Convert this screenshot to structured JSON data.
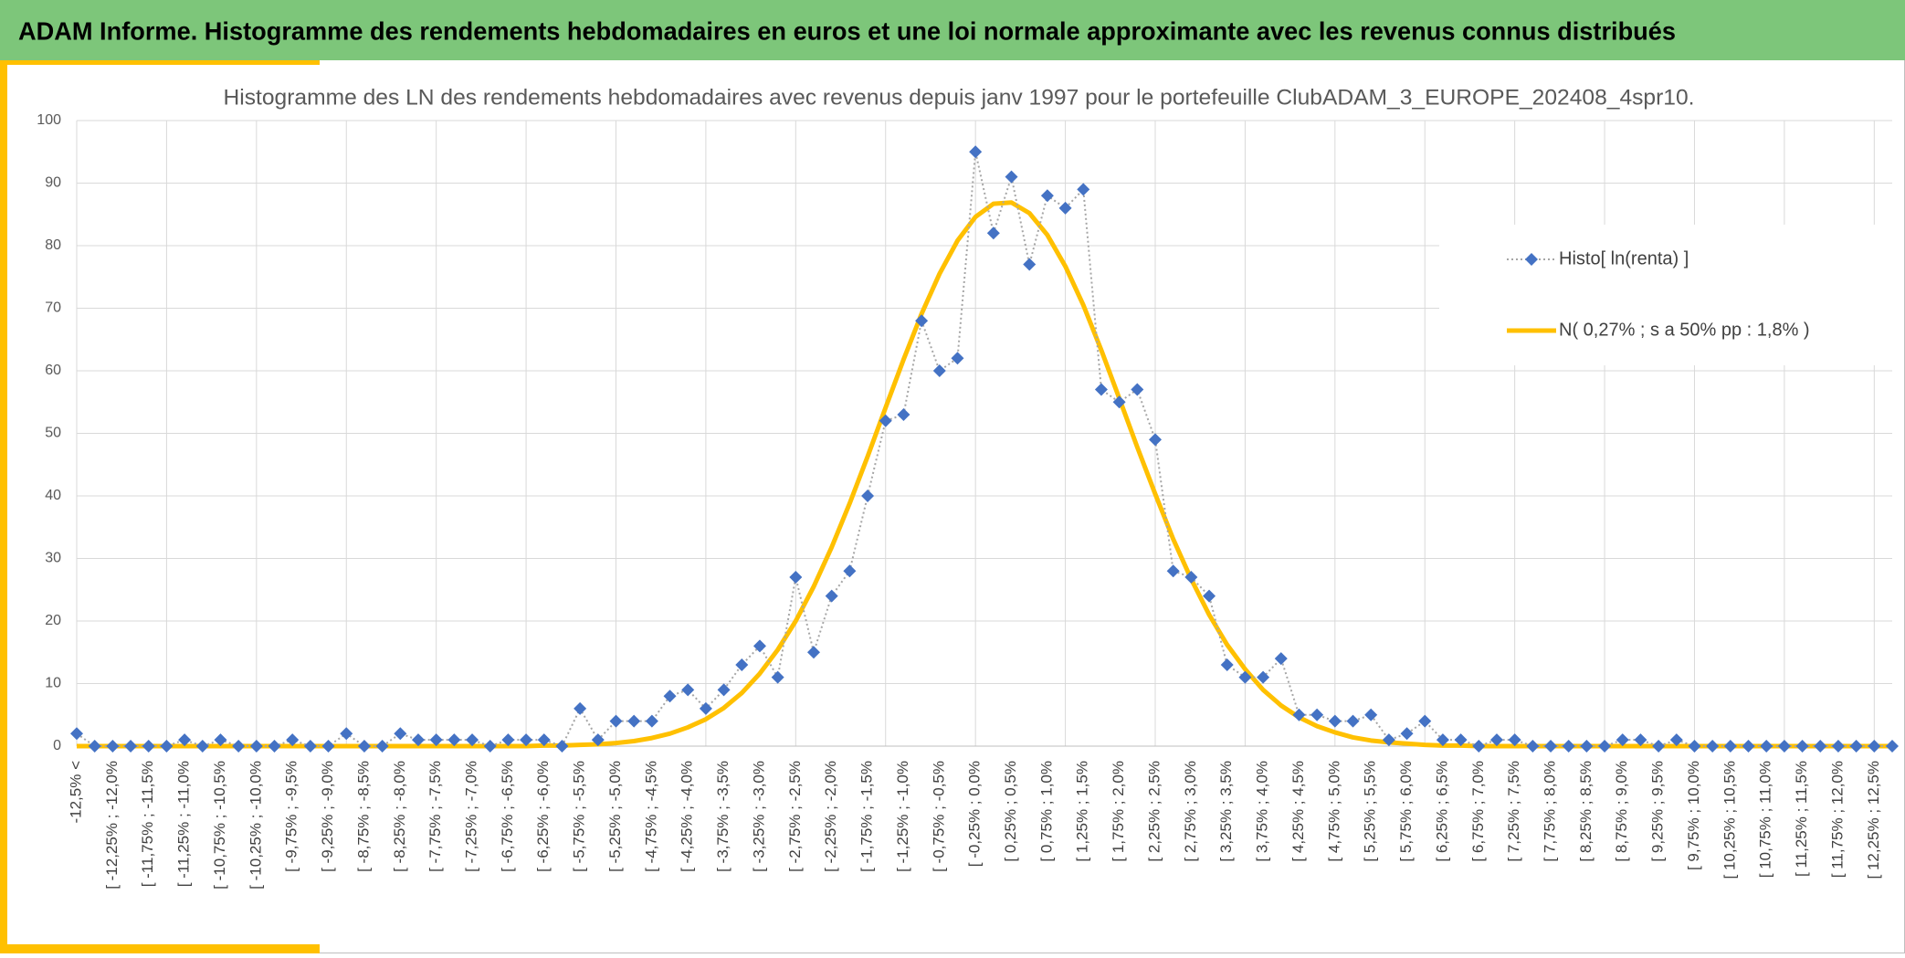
{
  "header": {
    "title": "ADAM Informe. Histogramme des rendements hebdomadaires en euros et une loi normale approximante avec les revenus connus distribués"
  },
  "chart_data": {
    "type": "line",
    "title": "Histogramme des LN des rendements hebdomadaires avec revenus depuis janv 1997 pour le portefeuille ClubADAM_3_EUROPE_202408_4spr10.",
    "categories": [
      "-12,5% <",
      null,
      "[ -12,25% ; -12,0%",
      null,
      "[ -11,75% ; -11,5%",
      null,
      "[ -11,25% ; -11,0%",
      null,
      "[ -10,75% ; -10,5%",
      null,
      "[ -10,25% ; -10,0%",
      null,
      "[ -9,75% ; -9,5%",
      null,
      "[ -9,25% ; -9,0%",
      null,
      "[ -8,75% ; -8,5%",
      null,
      "[ -8,25% ; -8,0%",
      null,
      "[ -7,75% ; -7,5%",
      null,
      "[ -7,25% ; -7,0%",
      null,
      "[ -6,75% ; -6,5%",
      null,
      "[ -6,25% ; -6,0%",
      null,
      "[ -5,75% ; -5,5%",
      null,
      "[ -5,25% ; -5,0%",
      null,
      "[ -4,75% ; -4,5%",
      null,
      "[ -4,25% ; -4,0%",
      null,
      "[ -3,75% ; -3,5%",
      null,
      "[ -3,25% ; -3,0%",
      null,
      "[ -2,75% ; -2,5%",
      null,
      "[ -2,25% ; -2,0%",
      null,
      "[ -1,75% ; -1,5%",
      null,
      "[ -1,25% ; -1,0%",
      null,
      "[ -0,75% ; -0,5%",
      null,
      "[ -0,25% ; 0,0%",
      null,
      "[ 0,25% ; 0,5%",
      null,
      "[ 0,75% ; 1,0%",
      null,
      "[ 1,25% ; 1,5%",
      null,
      "[ 1,75% ; 2,0%",
      null,
      "[ 2,25% ; 2,5%",
      null,
      "[ 2,75% ; 3,0%",
      null,
      "[ 3,25% ; 3,5%",
      null,
      "[ 3,75% ; 4,0%",
      null,
      "[ 4,25% ; 4,5%",
      null,
      "[ 4,75% ; 5,0%",
      null,
      "[ 5,25% ; 5,5%",
      null,
      "[ 5,75% ; 6,0%",
      null,
      "[ 6,25% ; 6,5%",
      null,
      "[ 6,75% ; 7,0%",
      null,
      "[ 7,25% ; 7,5%",
      null,
      "[ 7,75% ; 8,0%",
      null,
      "[ 8,25% ; 8,5%",
      null,
      "[ 8,75% ; 9,0%",
      null,
      "[ 9,25% ; 9,5%",
      null,
      "[ 9,75% ; 10,0%",
      null,
      "[ 10,25% ; 10,5%",
      null,
      "[ 10,75% ; 11,0%",
      null,
      "[ 11,25% ; 11,5%",
      null,
      "[ 11,75% ; 12,0%",
      null,
      "[ 12,25% ; 12,5%",
      null
    ],
    "series": [
      {
        "name": "Histo[ ln(renta) ]",
        "color": "#4472c4",
        "line_color": "#a6a6a6",
        "marker": "diamond",
        "values": [
          2,
          0,
          0,
          0,
          0,
          0,
          1,
          0,
          1,
          0,
          0,
          0,
          1,
          0,
          0,
          2,
          0,
          0,
          2,
          1,
          1,
          1,
          1,
          0,
          1,
          1,
          1,
          0,
          6,
          1,
          4,
          4,
          4,
          8,
          9,
          6,
          9,
          13,
          16,
          11,
          27,
          15,
          24,
          28,
          40,
          52,
          53,
          68,
          60,
          62,
          95,
          82,
          91,
          77,
          88,
          86,
          89,
          57,
          55,
          57,
          49,
          28,
          27,
          24,
          13,
          11,
          11,
          14,
          5,
          5,
          4,
          4,
          5,
          1,
          2,
          4,
          1,
          1,
          0,
          1,
          1,
          0,
          0,
          0,
          0,
          0,
          1,
          1,
          0,
          1,
          0,
          0,
          0,
          0,
          0,
          0,
          0,
          0,
          0,
          0,
          0,
          0
        ]
      },
      {
        "name": "N( 0,27% ; s a 50% pp : 1,8% )",
        "color": "#ffc000",
        "values": [
          0,
          0,
          0,
          0,
          0,
          0,
          0,
          0,
          0,
          0,
          0,
          0,
          0,
          0,
          0,
          0,
          0,
          0,
          0,
          0,
          0,
          0,
          0,
          0,
          0,
          0,
          0.1,
          0.1,
          0.2,
          0.3,
          0.5,
          0.8,
          1.3,
          2.0,
          3.0,
          4.3,
          6.1,
          8.5,
          11.6,
          15.4,
          20.0,
          25.5,
          31.8,
          38.8,
          46.3,
          54.1,
          61.8,
          69.1,
          75.5,
          80.8,
          84.6,
          86.7,
          86.9,
          85.2,
          81.7,
          76.7,
          70.5,
          63.3,
          55.6,
          47.8,
          40.3,
          33.1,
          26.7,
          21.0,
          16.2,
          12.3,
          9.0,
          6.5,
          4.6,
          3.2,
          2.2,
          1.4,
          0.9,
          0.6,
          0.4,
          0.2,
          0.1,
          0.1,
          0,
          0,
          0,
          0,
          0,
          0,
          0,
          0,
          0,
          0,
          0,
          0,
          0,
          0,
          0,
          0,
          0,
          0,
          0,
          0,
          0,
          0,
          0,
          0
        ]
      }
    ],
    "ylim": [
      0,
      100
    ],
    "yticks": [
      0,
      10,
      20,
      30,
      40,
      50,
      60,
      70,
      80,
      90,
      100
    ],
    "grid": true,
    "legend": "right"
  }
}
